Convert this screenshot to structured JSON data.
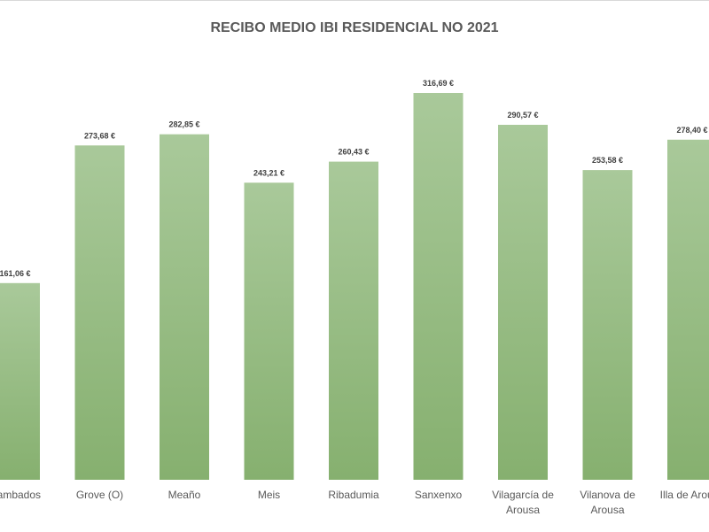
{
  "chart_data": {
    "type": "bar",
    "title": "RECIBO MEDIO IBI RESIDENCIAL NO 2021",
    "xlabel": "",
    "ylabel": "",
    "ylim": [
      0,
      340
    ],
    "grid": false,
    "legend": "none",
    "bar_color": "#a9c99a",
    "bar_color_dark": "#86b06f",
    "categories": [
      [
        "Cambados"
      ],
      [
        "Grove (O)"
      ],
      [
        "Meaño"
      ],
      [
        "Meis"
      ],
      [
        "Ribadumia"
      ],
      [
        "Sanxenxo"
      ],
      [
        "Vilagarcía de",
        "Arousa"
      ],
      [
        "Vilanova de",
        "Arousa"
      ],
      [
        "Illa de Arousa"
      ]
    ],
    "values": [
      161.06,
      273.68,
      282.85,
      243.21,
      260.43,
      316.69,
      290.57,
      253.58,
      278.4
    ],
    "value_labels": [
      "161,06 €",
      "273,68 €",
      "282,85 €",
      "243,21 €",
      "260,43 €",
      "316,69 €",
      "290,57 €",
      "253,58 €",
      "278,40 €"
    ]
  }
}
